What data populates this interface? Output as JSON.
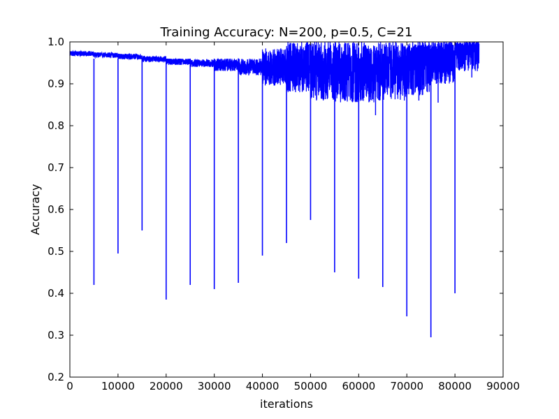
{
  "chart_data": {
    "type": "line",
    "title": "Training Accuracy: N=200, p=0.5, C=21",
    "xlabel": "iterations",
    "ylabel": "Accuracy",
    "xlim": [
      0,
      90000
    ],
    "ylim": [
      0.2,
      1.0
    ],
    "xticks": [
      0,
      10000,
      20000,
      30000,
      40000,
      50000,
      60000,
      70000,
      80000,
      90000
    ],
    "xtick_labels": [
      "0",
      "10000",
      "20000",
      "30000",
      "40000",
      "50000",
      "60000",
      "70000",
      "80000",
      "90000"
    ],
    "yticks": [
      0.2,
      0.3,
      0.4,
      0.5,
      0.6,
      0.7,
      0.8,
      0.9,
      1.0
    ],
    "ytick_labels": [
      "0.2",
      "0.3",
      "0.4",
      "0.5",
      "0.6",
      "0.7",
      "0.8",
      "0.9",
      "1.0"
    ],
    "grid": false,
    "line_color": "#0000ff",
    "x_end": 85000,
    "baseline_segments": [
      {
        "x": [
          0,
          5000
        ],
        "y": [
          0.975,
          0.97
        ],
        "noise": [
          0.966,
          0.978
        ]
      },
      {
        "x": [
          5000,
          10000
        ],
        "y": [
          0.97,
          0.968
        ],
        "noise": [
          0.962,
          0.975
        ]
      },
      {
        "x": [
          10000,
          15000
        ],
        "y": [
          0.966,
          0.964
        ],
        "noise": [
          0.958,
          0.972
        ]
      },
      {
        "x": [
          15000,
          20000
        ],
        "y": [
          0.962,
          0.958
        ],
        "noise": [
          0.952,
          0.966
        ]
      },
      {
        "x": [
          20000,
          25000
        ],
        "y": [
          0.956,
          0.952
        ],
        "noise": [
          0.945,
          0.96
        ]
      },
      {
        "x": [
          25000,
          30000
        ],
        "y": [
          0.952,
          0.948
        ],
        "noise": [
          0.94,
          0.958
        ]
      },
      {
        "x": [
          30000,
          35000
        ],
        "y": [
          0.948,
          0.944
        ],
        "noise": [
          0.93,
          0.96
        ]
      },
      {
        "x": [
          35000,
          40000
        ],
        "y": [
          0.944,
          0.94
        ],
        "noise": [
          0.92,
          0.96
        ]
      },
      {
        "x": [
          40000,
          45000
        ],
        "y": [
          0.94,
          0.94
        ],
        "noise": [
          0.895,
          0.985
        ]
      },
      {
        "x": [
          45000,
          50000
        ],
        "y": [
          0.94,
          0.94
        ],
        "noise": [
          0.88,
          1.0
        ]
      },
      {
        "x": [
          50000,
          55000
        ],
        "y": [
          0.94,
          0.94
        ],
        "noise": [
          0.86,
          1.0
        ]
      },
      {
        "x": [
          55000,
          60000
        ],
        "y": [
          0.94,
          0.94
        ],
        "noise": [
          0.855,
          1.0
        ]
      },
      {
        "x": [
          60000,
          65000
        ],
        "y": [
          0.94,
          0.94
        ],
        "noise": [
          0.855,
          1.0
        ]
      },
      {
        "x": [
          65000,
          70000
        ],
        "y": [
          0.945,
          0.945
        ],
        "noise": [
          0.86,
          1.0
        ]
      },
      {
        "x": [
          70000,
          75000
        ],
        "y": [
          0.96,
          0.96
        ],
        "noise": [
          0.87,
          1.0
        ]
      },
      {
        "x": [
          75000,
          80000
        ],
        "y": [
          0.975,
          0.975
        ],
        "noise": [
          0.9,
          1.0
        ]
      },
      {
        "x": [
          80000,
          85000
        ],
        "y": [
          0.99,
          0.99
        ],
        "noise": [
          0.93,
          1.0
        ]
      }
    ],
    "spikes": [
      {
        "x": 5000,
        "y": 0.42
      },
      {
        "x": 10000,
        "y": 0.495
      },
      {
        "x": 15000,
        "y": 0.55
      },
      {
        "x": 20000,
        "y": 0.385
      },
      {
        "x": 25000,
        "y": 0.42
      },
      {
        "x": 30000,
        "y": 0.41
      },
      {
        "x": 35000,
        "y": 0.425
      },
      {
        "x": 40000,
        "y": 0.49
      },
      {
        "x": 45000,
        "y": 0.52
      },
      {
        "x": 50000,
        "y": 0.575
      },
      {
        "x": 55000,
        "y": 0.45
      },
      {
        "x": 60000,
        "y": 0.435
      },
      {
        "x": 65000,
        "y": 0.415
      },
      {
        "x": 70000,
        "y": 0.345
      },
      {
        "x": 75000,
        "y": 0.295
      },
      {
        "x": 80000,
        "y": 0.4
      }
    ],
    "minor_dips": [
      {
        "x": 63500,
        "y": 0.825
      },
      {
        "x": 72500,
        "y": 0.86
      },
      {
        "x": 76500,
        "y": 0.855
      },
      {
        "x": 78000,
        "y": 0.9
      },
      {
        "x": 82000,
        "y": 0.93
      },
      {
        "x": 83500,
        "y": 0.915
      }
    ]
  }
}
